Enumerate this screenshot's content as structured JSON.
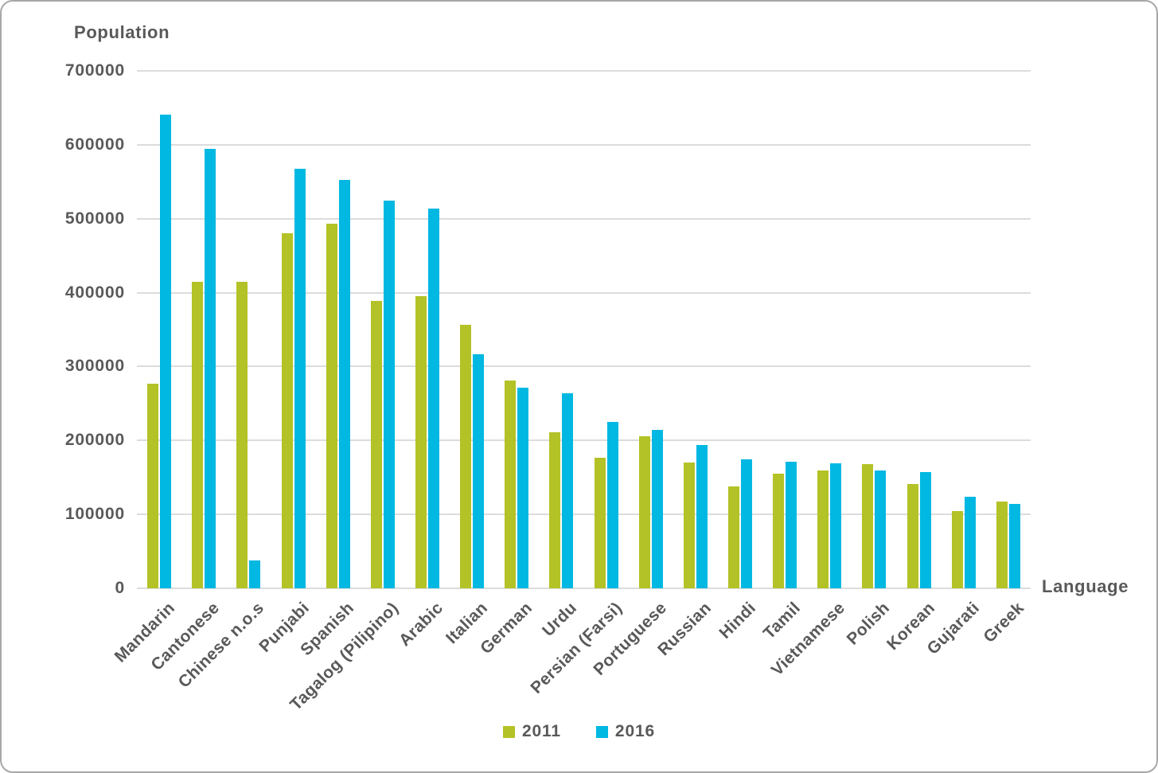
{
  "chart_data": {
    "type": "bar",
    "title": "",
    "ylabel": "Population",
    "xlabel": "Language",
    "ylim": [
      0,
      700000
    ],
    "ytick_step": 100000,
    "ytick_labels": [
      "0",
      "100000",
      "200000",
      "300000",
      "400000",
      "500000",
      "600000",
      "700000"
    ],
    "grid": "horizontal",
    "legend_position": "bottom-center",
    "categories": [
      "Mandarin",
      "Cantonese",
      "Chinese n.o.s",
      "Punjabi",
      "Spanish",
      "Tagalog (Pilipino)",
      "Arabic",
      "Italian",
      "German",
      "Urdu",
      "Persian (Farsi)",
      "Portuguese",
      "Russian",
      "Hindi",
      "Tamil",
      "Vietnamese",
      "Polish",
      "Korean",
      "Gujarati",
      "Greek"
    ],
    "series": [
      {
        "name": "2011",
        "color": "#b3c226",
        "values": [
          277000,
          415000,
          415000,
          480000,
          493000,
          389000,
          395000,
          356000,
          281000,
          211000,
          177000,
          206000,
          170000,
          138000,
          155000,
          159000,
          168000,
          141000,
          105000,
          117000
        ]
      },
      {
        "name": "2016",
        "color": "#00b8e1",
        "values": [
          641000,
          595000,
          38000,
          568000,
          553000,
          525000,
          514000,
          317000,
          271000,
          264000,
          225000,
          214000,
          194000,
          175000,
          171000,
          169000,
          159000,
          157000,
          124000,
          114000
        ]
      }
    ],
    "colors": {
      "text": "#595959",
      "gridline": "#dcdcdc",
      "frame_border": "#a8a8a8",
      "background": "#ffffff"
    }
  }
}
